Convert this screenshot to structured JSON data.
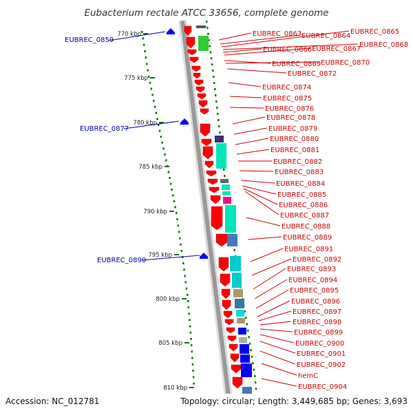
{
  "title": "Eubacterium rectale ATCC 33656, complete genome",
  "accession": "Accession: NC_012781",
  "topology": "Topology: circular; Length: 3,449,685 bp; Genes: 3,693",
  "colors": {
    "forward_label": "#cc0000",
    "reverse_label": "#0000aa",
    "forward_gene": "#ff0000",
    "reverse_gene": "#0000ff",
    "tick": "#007700",
    "backbone": "#999999"
  },
  "scale_ticks": [
    "770 kbp",
    "775 kbp",
    "780 kbp",
    "785 kbp",
    "790 kbp",
    "795 kbp",
    "800 kbp",
    "805 kbp",
    "810 kbp"
  ],
  "reverse_genes": [
    "EUBREC_0859",
    "EUBREC_0877",
    "EUBREC_0890"
  ],
  "forward_genes": [
    "EUBREC_0863",
    "EUBREC_0864",
    "EUBREC_0865",
    "EUBREC_0868",
    "EUBREC_0866",
    "EUBREC_0867",
    "EUBREC_0869",
    "EUBREC_0870",
    "EUBREC_0872",
    "EUBREC_0874",
    "EUBREC_0875",
    "EUBREC_0876",
    "EUBREC_0878",
    "EUBREC_0879",
    "EUBREC_0880",
    "EUBREC_0881",
    "EUBREC_0882",
    "EUBREC_0883",
    "EUBREC_0884",
    "EUBREC_0885",
    "EUBREC_0886",
    "EUBREC_0887",
    "EUBREC_0888",
    "EUBREC_0889",
    "EUBREC_0891",
    "EUBREC_0892",
    "EUBREC_0893",
    "EUBREC_0894",
    "EUBREC_0895",
    "EUBREC_0896",
    "EUBREC_0897",
    "EUBREC_0898",
    "EUBREC_0899",
    "EUBREC_0900",
    "EUBREC_0901",
    "EUBREC_0902",
    "hemC",
    "EUBREC_0904"
  ]
}
